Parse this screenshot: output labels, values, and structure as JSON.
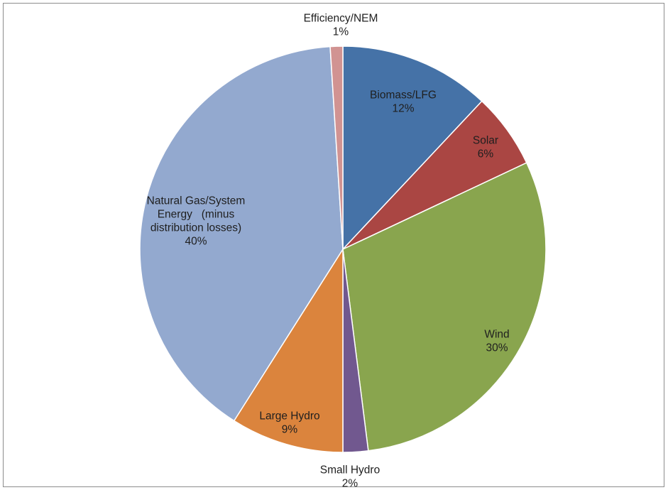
{
  "chart_data": {
    "type": "pie",
    "start_angle_deg": 0,
    "direction": "clockwise",
    "legend": "none",
    "slices": [
      {
        "name": "Biomass/LFG",
        "value": 12,
        "label_lines": [
          "Biomass/LFG",
          "12%"
        ],
        "color": "#4572A7"
      },
      {
        "name": "Solar",
        "value": 6,
        "label_lines": [
          "Solar",
          "6%"
        ],
        "color": "#AA4643"
      },
      {
        "name": "Wind",
        "value": 30,
        "label_lines": [
          "Wind",
          "30%"
        ],
        "color": "#89A54E"
      },
      {
        "name": "Small Hydro",
        "value": 2,
        "label_lines": [
          "Small Hydro",
          "2%"
        ],
        "color": "#71588F"
      },
      {
        "name": "Large Hydro",
        "value": 9,
        "label_lines": [
          "Large Hydro",
          "9%"
        ],
        "color": "#DB843D"
      },
      {
        "name": "Natural Gas/System Energy (minus distribution losses)",
        "value": 40,
        "label_lines": [
          "Natural Gas/System",
          "Energy   (minus",
          "distribution losses)",
          "40%"
        ],
        "color": "#93A9CF"
      },
      {
        "name": "Efficiency/NEM",
        "value": 1,
        "label_lines": [
          "Efficiency/NEM",
          "1%"
        ],
        "color": "#D19392"
      }
    ]
  }
}
